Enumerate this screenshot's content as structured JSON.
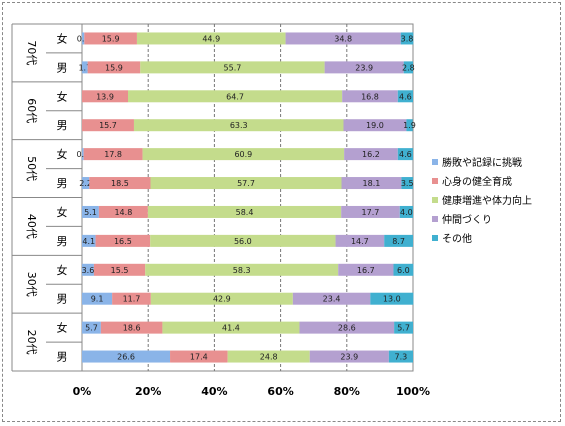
{
  "chart_data": {
    "type": "bar",
    "orientation": "horizontal",
    "stacked": "percent",
    "xlim": [
      0,
      100
    ],
    "x_ticks": [
      "0%",
      "20%",
      "40%",
      "60%",
      "80%",
      "100%"
    ],
    "grid": "vertical-dashed",
    "legend_position": "right",
    "groups": [
      {
        "label": "70代",
        "rows": [
          {
            "label": "女",
            "values": [
              0.7,
              15.9,
              44.9,
              34.8,
              3.8
            ]
          },
          {
            "label": "男",
            "values": [
              1.7,
              15.9,
              55.7,
              23.9,
              2.8
            ]
          }
        ]
      },
      {
        "label": "60代",
        "rows": [
          {
            "label": "女",
            "values": [
              0.0,
              13.9,
              64.7,
              16.8,
              4.6
            ]
          },
          {
            "label": "男",
            "values": [
              0.0,
              15.7,
              63.3,
              19.0,
              1.9
            ]
          }
        ]
      },
      {
        "label": "50代",
        "rows": [
          {
            "label": "女",
            "values": [
              0.5,
              17.8,
              60.9,
              16.2,
              4.6
            ]
          },
          {
            "label": "男",
            "values": [
              2.2,
              18.5,
              57.7,
              18.1,
              3.5
            ]
          }
        ]
      },
      {
        "label": "40代",
        "rows": [
          {
            "label": "女",
            "values": [
              5.1,
              14.8,
              58.4,
              17.7,
              4.0
            ]
          },
          {
            "label": "男",
            "values": [
              4.1,
              16.5,
              56.0,
              14.7,
              8.7
            ]
          }
        ]
      },
      {
        "label": "30代",
        "rows": [
          {
            "label": "女",
            "values": [
              3.6,
              15.5,
              58.3,
              16.7,
              6.0
            ]
          },
          {
            "label": "男",
            "values": [
              9.1,
              11.7,
              42.9,
              23.4,
              13.0
            ]
          }
        ]
      },
      {
        "label": "20代",
        "rows": [
          {
            "label": "女",
            "values": [
              5.7,
              18.6,
              41.4,
              28.6,
              5.7
            ]
          },
          {
            "label": "男",
            "values": [
              26.6,
              17.4,
              24.8,
              23.9,
              7.3
            ]
          }
        ]
      }
    ],
    "series": [
      {
        "name": "勝敗や記録に挑戦",
        "color": "#8ab4e8"
      },
      {
        "name": "心身の健全育成",
        "color": "#e89090"
      },
      {
        "name": "健康増進や体力向上",
        "color": "#c4dc8c"
      },
      {
        "name": "仲間づくり",
        "color": "#b4a0d0"
      },
      {
        "name": "その他",
        "color": "#40b0d0"
      }
    ]
  }
}
